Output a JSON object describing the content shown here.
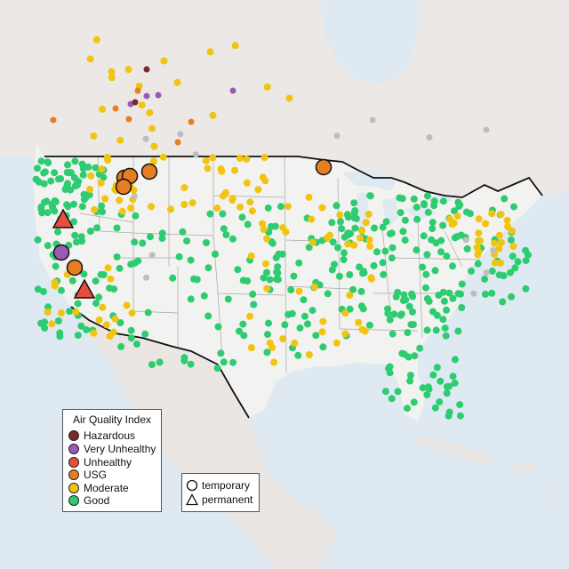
{
  "map": {
    "colors": {
      "ocean": "#dfe9f1",
      "land": "#f2f2f0",
      "land_north": "#ece8e6",
      "border": "#111111",
      "state_line": "#a8a8a8",
      "nodata": "#bdbdbd"
    },
    "categories": [
      {
        "key": "hazardous",
        "label": "Hazardous",
        "color": "#7a2a2a"
      },
      {
        "key": "very_unhealthy",
        "label": "Very Unhealthy",
        "color": "#9b59b6"
      },
      {
        "key": "unhealthy",
        "label": "Unhealthy",
        "color": "#e74c3c"
      },
      {
        "key": "usg",
        "label": "USG",
        "color": "#e67e22"
      },
      {
        "key": "moderate",
        "label": "Moderate",
        "color": "#f1c40f"
      },
      {
        "key": "good",
        "label": "Good",
        "color": "#2ecc71"
      }
    ]
  },
  "legend": {
    "title": "Air Quality Index",
    "type_temporary": "temporary",
    "type_permanent": "permanent"
  }
}
